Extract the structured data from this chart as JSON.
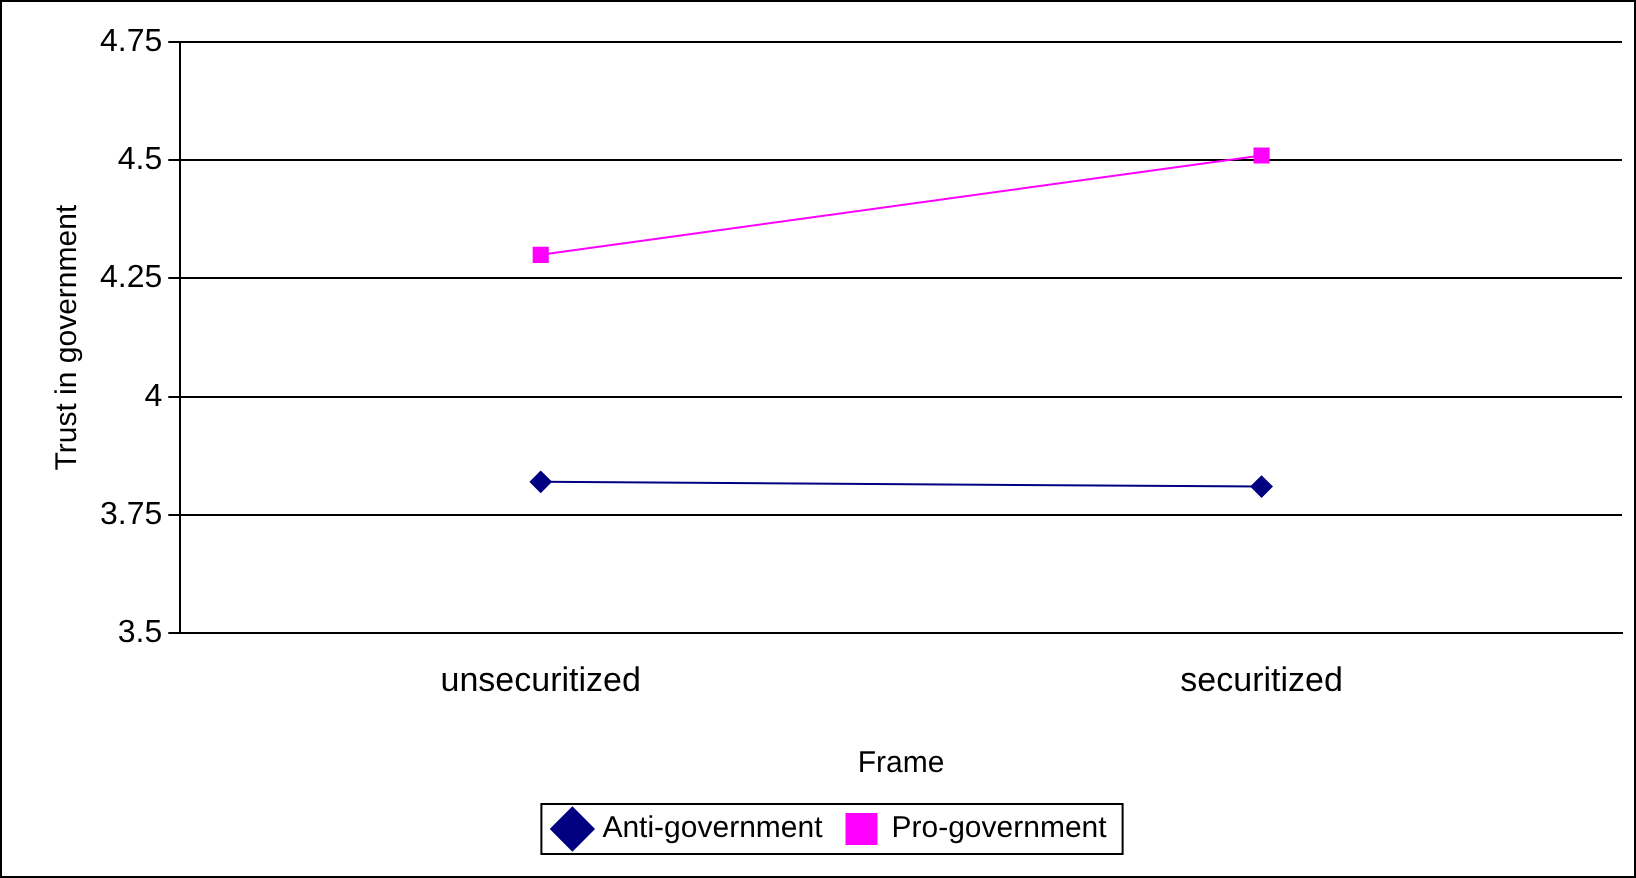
{
  "chart_data": {
    "type": "line",
    "xlabel": "Frame",
    "ylabel": "Trust in government",
    "categories": [
      "unsecuritized",
      "securitized"
    ],
    "series": [
      {
        "name": "Anti-government",
        "color": "#000080",
        "marker": "diamond",
        "values": [
          3.82,
          3.81
        ]
      },
      {
        "name": "Pro-government",
        "color": "#ff00ff",
        "marker": "square",
        "values": [
          4.3,
          4.51
        ]
      }
    ],
    "ylim": [
      3.5,
      4.75
    ],
    "yticks": [
      3.5,
      3.75,
      4,
      4.25,
      4.5,
      4.75
    ],
    "grid": "y",
    "legend": "bottom",
    "line_style": "solid"
  }
}
